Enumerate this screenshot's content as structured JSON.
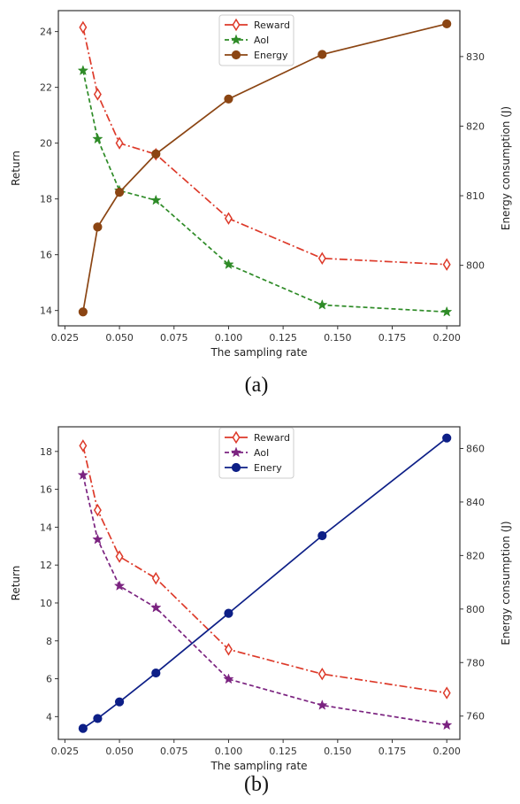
{
  "chart_data": [
    {
      "type": "line",
      "caption": "(a)",
      "xlabel": "The sampling rate",
      "ylabel": "Return",
      "y2label": "Energy consumption (J)",
      "xlim": [
        0.022,
        0.206
      ],
      "ylim": [
        13.45,
        24.75
      ],
      "y2lim": [
        791.3,
        836.6
      ],
      "xticks": [
        "0.025",
        "0.050",
        "0.075",
        "0.100",
        "0.125",
        "0.150",
        "0.175",
        "0.200"
      ],
      "yticks": [
        "14",
        "16",
        "18",
        "20",
        "22",
        "24"
      ],
      "y2ticks": [
        "800",
        "810",
        "820",
        "830"
      ],
      "grid": false,
      "legend_position": "top-center",
      "x": [
        0.0333,
        0.04,
        0.05,
        0.0667,
        0.1,
        0.1429,
        0.2
      ],
      "series": [
        {
          "name": "Reward",
          "axis": "left",
          "color": "#dd3a2a",
          "marker": "diamond-open",
          "style": "dashdot",
          "values": [
            24.15,
            21.75,
            20.0,
            19.6,
            17.3,
            15.87,
            15.65
          ]
        },
        {
          "name": "AoI",
          "axis": "left",
          "color": "#2e8b27",
          "marker": "star",
          "style": "dashed",
          "values": [
            22.6,
            20.15,
            18.3,
            17.95,
            15.65,
            14.2,
            13.95
          ]
        },
        {
          "name": "Energy",
          "axis": "right",
          "color": "#8b4513",
          "marker": "circle",
          "style": "solid",
          "values": [
            793.3,
            805.5,
            810.5,
            816.0,
            823.9,
            830.3,
            834.7
          ]
        }
      ]
    },
    {
      "type": "line",
      "caption": "(b)",
      "xlabel": "The sampling rate",
      "ylabel": "Return",
      "y2label": "Energy consumption (J)",
      "xlim": [
        0.022,
        0.206
      ],
      "ylim": [
        2.8,
        19.3
      ],
      "y2lim": [
        751.3,
        868.1
      ],
      "xticks": [
        "0.025",
        "0.050",
        "0.075",
        "0.100",
        "0.125",
        "0.150",
        "0.175",
        "0.200"
      ],
      "yticks": [
        "4",
        "6",
        "8",
        "10",
        "12",
        "14",
        "16",
        "18"
      ],
      "y2ticks": [
        "760",
        "780",
        "800",
        "820",
        "840",
        "860"
      ],
      "grid": false,
      "legend_position": "top-center",
      "x": [
        0.0333,
        0.04,
        0.05,
        0.0667,
        0.1,
        0.1429,
        0.2
      ],
      "series": [
        {
          "name": "Reward",
          "axis": "left",
          "color": "#dd3a2a",
          "marker": "diamond-open",
          "style": "dashdot",
          "values": [
            18.3,
            14.9,
            12.45,
            11.3,
            7.55,
            6.25,
            5.25
          ]
        },
        {
          "name": "AoI",
          "axis": "left",
          "color": "#7b2380",
          "marker": "star",
          "style": "dashed",
          "values": [
            16.75,
            13.35,
            10.9,
            9.75,
            5.98,
            4.6,
            3.55
          ]
        },
        {
          "name": "Enery",
          "axis": "right",
          "color": "#0d1f87",
          "marker": "circle",
          "style": "solid",
          "values": [
            755.4,
            759.1,
            765.3,
            776.1,
            798.4,
            827.4,
            863.9
          ]
        }
      ]
    }
  ]
}
